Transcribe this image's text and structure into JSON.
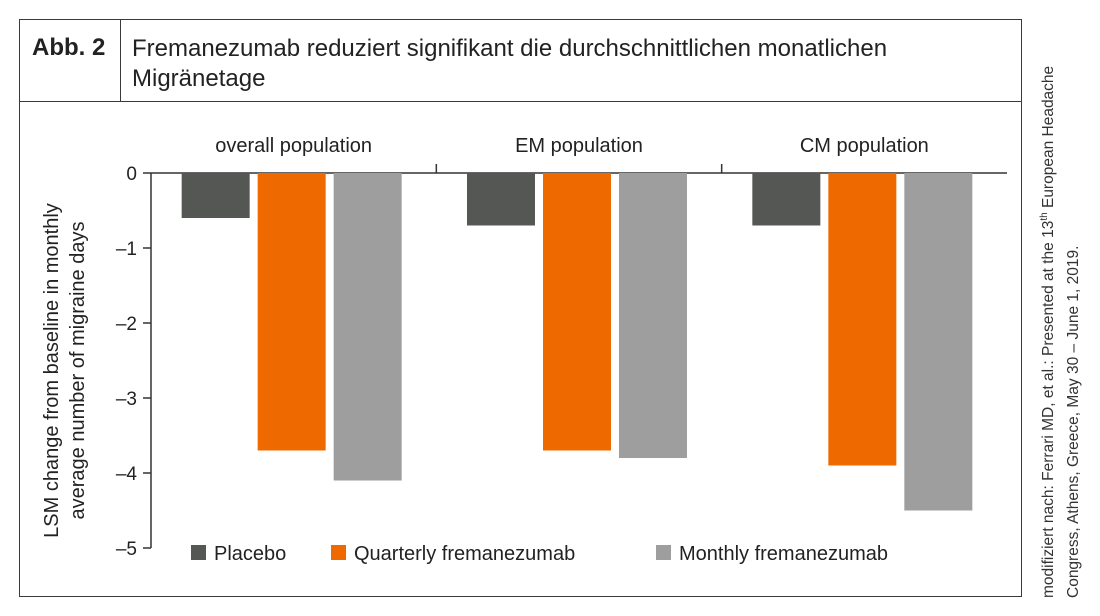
{
  "header": {
    "figure_label": "Abb. 2",
    "title": "Fremanezumab reduziert signifikant die durchschnittlichen monatlichen Migränetage"
  },
  "source_note": {
    "line1_pre": "modifiziert nach: Ferrari MD, et al.: Presented at the 13",
    "line1_sup": "th",
    "line1_post": " European Headache",
    "line2": "Congress, Athens, Greece, May 30 – June 1, 2019."
  },
  "chart_data": {
    "type": "bar",
    "categories": [
      "overall population",
      "EM population",
      "CM population"
    ],
    "series": [
      {
        "name": "Placebo",
        "color": "#555754",
        "values": [
          -0.6,
          -0.7,
          -0.7
        ]
      },
      {
        "name": "Quarterly fremanezumab",
        "color": "#ee6a00",
        "values": [
          -3.7,
          -3.7,
          -3.9
        ]
      },
      {
        "name": "Monthly fremanezumab",
        "color": "#9d9e9d",
        "values": [
          -4.1,
          -3.8,
          -4.5
        ]
      }
    ],
    "ylabel_lines": [
      "LSM change from baseline in monthly",
      "average number of migraine days"
    ],
    "ylim": [
      -5,
      0
    ],
    "yticks": [
      0,
      -1,
      -2,
      -3,
      -4,
      -5
    ],
    "ytick_labels": [
      "0",
      "–1",
      "–2",
      "–3",
      "–4",
      "–5"
    ],
    "legend_position": "bottom",
    "grid": false
  }
}
